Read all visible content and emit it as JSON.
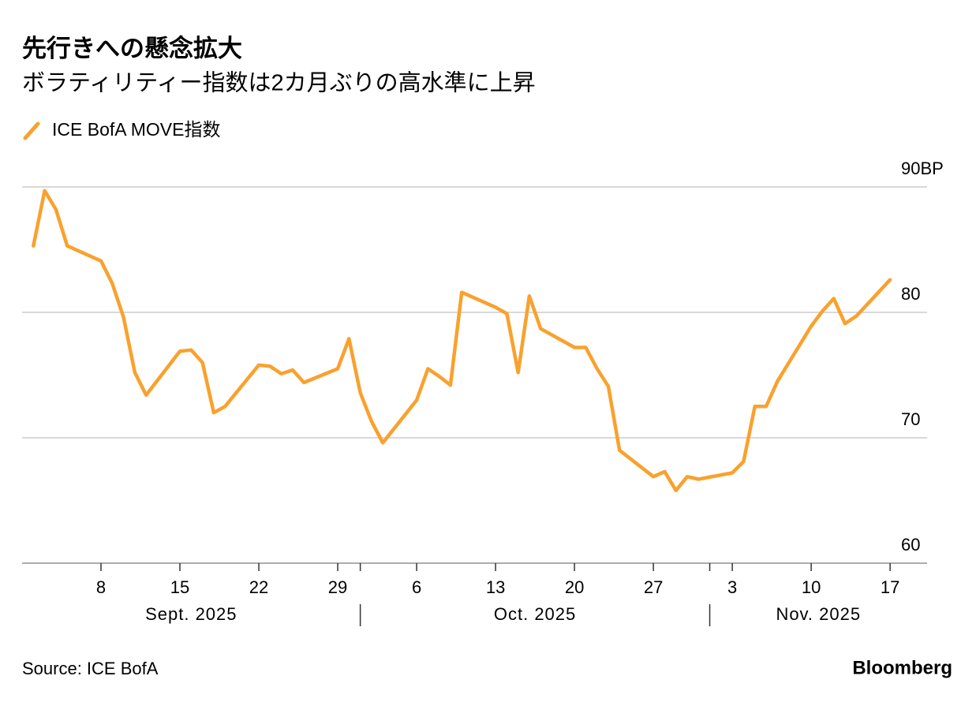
{
  "chart_data": {
    "type": "line",
    "title": "先行きへの懸念拡大",
    "subtitle": "ボラティリティー指数は2カ月ぶりの高水準に上昇",
    "source": "Source: ICE BofA",
    "brand": "Bloomberg",
    "x": [
      "2025-09-02",
      "2025-09-03",
      "2025-09-04",
      "2025-09-05",
      "2025-09-08",
      "2025-09-09",
      "2025-09-10",
      "2025-09-11",
      "2025-09-12",
      "2025-09-15",
      "2025-09-16",
      "2025-09-17",
      "2025-09-18",
      "2025-09-19",
      "2025-09-22",
      "2025-09-23",
      "2025-09-24",
      "2025-09-25",
      "2025-09-26",
      "2025-09-29",
      "2025-09-30",
      "2025-10-01",
      "2025-10-02",
      "2025-10-03",
      "2025-10-06",
      "2025-10-07",
      "2025-10-08",
      "2025-10-09",
      "2025-10-10",
      "2025-10-13",
      "2025-10-14",
      "2025-10-15",
      "2025-10-16",
      "2025-10-17",
      "2025-10-20",
      "2025-10-21",
      "2025-10-22",
      "2025-10-23",
      "2025-10-24",
      "2025-10-27",
      "2025-10-28",
      "2025-10-29",
      "2025-10-30",
      "2025-10-31",
      "2025-11-03",
      "2025-11-04",
      "2025-11-05",
      "2025-11-06",
      "2025-11-07",
      "2025-11-10",
      "2025-11-11",
      "2025-11-12",
      "2025-11-13",
      "2025-11-14",
      "2025-11-17"
    ],
    "series": [
      {
        "name": "ICE BofA MOVE指数",
        "color": "#f9a12e",
        "values": [
          85.3,
          89.7,
          88.2,
          85.3,
          84.1,
          82.3,
          79.6,
          75.2,
          73.4,
          76.9,
          77.0,
          76.0,
          72.0,
          72.5,
          75.8,
          75.7,
          75.1,
          75.4,
          74.4,
          75.5,
          77.9,
          73.6,
          71.3,
          69.6,
          73.0,
          75.5,
          74.9,
          74.2,
          81.6,
          80.4,
          79.9,
          75.2,
          81.3,
          78.7,
          77.2,
          77.2,
          75.5,
          74.1,
          69.0,
          66.9,
          67.3,
          65.8,
          66.9,
          66.7,
          67.2,
          68.1,
          72.5,
          72.5,
          74.5,
          78.9,
          80.1,
          81.1,
          79.1,
          79.7,
          82.6
        ]
      }
    ],
    "xlim": [
      "2025-09-01",
      "2025-11-20"
    ],
    "xticks": [
      {
        "value": "2025-09-08",
        "label": "8"
      },
      {
        "value": "2025-09-15",
        "label": "15"
      },
      {
        "value": "2025-09-22",
        "label": "22"
      },
      {
        "value": "2025-09-29",
        "label": "29"
      },
      {
        "value": "2025-10-06",
        "label": "6"
      },
      {
        "value": "2025-10-13",
        "label": "13"
      },
      {
        "value": "2025-10-20",
        "label": "20"
      },
      {
        "value": "2025-10-27",
        "label": "27"
      },
      {
        "value": "2025-11-03",
        "label": "3"
      },
      {
        "value": "2025-11-10",
        "label": "10"
      },
      {
        "value": "2025-11-17",
        "label": "17"
      }
    ],
    "months": [
      "Sept. 2025",
      "Oct. 2025",
      "Nov. 2025"
    ],
    "ylim": [
      60,
      90
    ],
    "yticks": [
      60,
      70,
      80,
      {
        "value": 90,
        "label": "90BP"
      }
    ],
    "grid": true
  }
}
